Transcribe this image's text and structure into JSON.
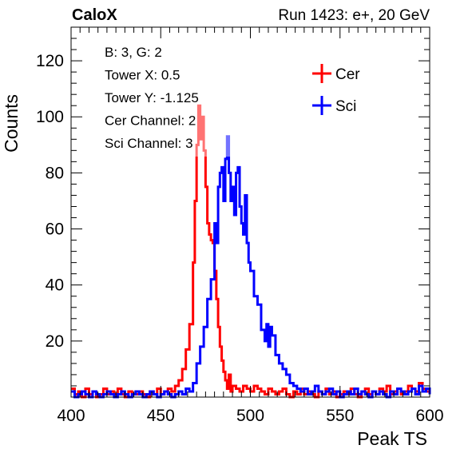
{
  "header": {
    "left": "CaloX",
    "right": "Run 1423: e+, 20 GeV"
  },
  "info_box": {
    "lines": [
      "B: 3, G: 2",
      "Tower X: 0.5",
      "Tower Y: -1.125",
      "Cer Channel: 2",
      "Sci Channel: 3"
    ]
  },
  "chart_data": {
    "type": "line",
    "xlabel": "Peak TS",
    "ylabel": "Counts",
    "xlim": [
      400,
      600
    ],
    "ylim": [
      0,
      132
    ],
    "x_ticks": [
      400,
      450,
      500,
      550,
      600
    ],
    "y_ticks": [
      20,
      40,
      60,
      80,
      100,
      120
    ],
    "legend_position": "top-right",
    "grid": false,
    "series": [
      {
        "name": "Cer",
        "color": "#ff0000",
        "points": [
          [
            400,
            3
          ],
          [
            402,
            1
          ],
          [
            404,
            2
          ],
          [
            406,
            0
          ],
          [
            408,
            3
          ],
          [
            410,
            1
          ],
          [
            412,
            2
          ],
          [
            414,
            0
          ],
          [
            416,
            1
          ],
          [
            418,
            3
          ],
          [
            420,
            1
          ],
          [
            422,
            2
          ],
          [
            424,
            1
          ],
          [
            426,
            3
          ],
          [
            428,
            1
          ],
          [
            430,
            0
          ],
          [
            432,
            2
          ],
          [
            434,
            1
          ],
          [
            436,
            1
          ],
          [
            438,
            2
          ],
          [
            440,
            1
          ],
          [
            442,
            0
          ],
          [
            444,
            2
          ],
          [
            446,
            1
          ],
          [
            448,
            3
          ],
          [
            450,
            1
          ],
          [
            452,
            2
          ],
          [
            454,
            3
          ],
          [
            456,
            2
          ],
          [
            458,
            4
          ],
          [
            460,
            6
          ],
          [
            462,
            10
          ],
          [
            464,
            17
          ],
          [
            466,
            26
          ],
          [
            468,
            48
          ],
          [
            469,
            70
          ],
          [
            470,
            90
          ],
          [
            471,
            104
          ],
          [
            472,
            92
          ],
          [
            473,
            100
          ],
          [
            474,
            88
          ],
          [
            475,
            75
          ],
          [
            476,
            62
          ],
          [
            477,
            58
          ],
          [
            478,
            56
          ],
          [
            479,
            55
          ],
          [
            480,
            45
          ],
          [
            481,
            35
          ],
          [
            482,
            25
          ],
          [
            483,
            18
          ],
          [
            484,
            13
          ],
          [
            485,
            9
          ],
          [
            486,
            6
          ],
          [
            487,
            3
          ],
          [
            488,
            8
          ],
          [
            489,
            2
          ],
          [
            490,
            4
          ],
          [
            492,
            3
          ],
          [
            494,
            2
          ],
          [
            496,
            4
          ],
          [
            498,
            3
          ],
          [
            500,
            2
          ],
          [
            502,
            4
          ],
          [
            504,
            3
          ],
          [
            506,
            2
          ],
          [
            508,
            1
          ],
          [
            510,
            3
          ],
          [
            512,
            2
          ],
          [
            514,
            1
          ],
          [
            516,
            2
          ],
          [
            518,
            3
          ],
          [
            520,
            1
          ],
          [
            522,
            0
          ],
          [
            524,
            2
          ],
          [
            526,
            1
          ],
          [
            528,
            3
          ],
          [
            530,
            1
          ],
          [
            532,
            2
          ],
          [
            534,
            1
          ],
          [
            536,
            0
          ],
          [
            538,
            2
          ],
          [
            540,
            1
          ],
          [
            542,
            3
          ],
          [
            544,
            1
          ],
          [
            546,
            2
          ],
          [
            548,
            0
          ],
          [
            550,
            1
          ],
          [
            552,
            2
          ],
          [
            554,
            1
          ],
          [
            556,
            3
          ],
          [
            558,
            1
          ],
          [
            560,
            0
          ],
          [
            562,
            2
          ],
          [
            564,
            3
          ],
          [
            566,
            1
          ],
          [
            568,
            2
          ],
          [
            570,
            1
          ],
          [
            572,
            3
          ],
          [
            574,
            2
          ],
          [
            576,
            4
          ],
          [
            578,
            1
          ],
          [
            580,
            2
          ],
          [
            582,
            3
          ],
          [
            584,
            1
          ],
          [
            586,
            2
          ],
          [
            588,
            4
          ],
          [
            590,
            3
          ],
          [
            592,
            2
          ],
          [
            594,
            5
          ],
          [
            596,
            3
          ],
          [
            598,
            2
          ],
          [
            600,
            1
          ]
        ]
      },
      {
        "name": "Sci",
        "color": "#0000ff",
        "points": [
          [
            400,
            2
          ],
          [
            402,
            0
          ],
          [
            404,
            1
          ],
          [
            406,
            2
          ],
          [
            408,
            1
          ],
          [
            410,
            0
          ],
          [
            412,
            2
          ],
          [
            414,
            1
          ],
          [
            416,
            0
          ],
          [
            418,
            1
          ],
          [
            420,
            2
          ],
          [
            422,
            1
          ],
          [
            424,
            0
          ],
          [
            426,
            1
          ],
          [
            428,
            2
          ],
          [
            430,
            1
          ],
          [
            432,
            0
          ],
          [
            434,
            1
          ],
          [
            436,
            2
          ],
          [
            438,
            1
          ],
          [
            440,
            0
          ],
          [
            442,
            1
          ],
          [
            444,
            2
          ],
          [
            446,
            1
          ],
          [
            448,
            0
          ],
          [
            450,
            1
          ],
          [
            452,
            2
          ],
          [
            454,
            1
          ],
          [
            456,
            0
          ],
          [
            458,
            1
          ],
          [
            460,
            2
          ],
          [
            462,
            1
          ],
          [
            464,
            3
          ],
          [
            466,
            2
          ],
          [
            468,
            5
          ],
          [
            470,
            12
          ],
          [
            472,
            18
          ],
          [
            474,
            25
          ],
          [
            476,
            35
          ],
          [
            478,
            42
          ],
          [
            480,
            62
          ],
          [
            481,
            55
          ],
          [
            482,
            75
          ],
          [
            483,
            80
          ],
          [
            484,
            82
          ],
          [
            485,
            70
          ],
          [
            486,
            85
          ],
          [
            487,
            93
          ],
          [
            488,
            80
          ],
          [
            489,
            70
          ],
          [
            490,
            75
          ],
          [
            491,
            65
          ],
          [
            492,
            80
          ],
          [
            493,
            82
          ],
          [
            494,
            68
          ],
          [
            495,
            62
          ],
          [
            496,
            58
          ],
          [
            497,
            72
          ],
          [
            498,
            55
          ],
          [
            499,
            48
          ],
          [
            500,
            45
          ],
          [
            502,
            36
          ],
          [
            504,
            33
          ],
          [
            506,
            24
          ],
          [
            508,
            20
          ],
          [
            509,
            26
          ],
          [
            510,
            18
          ],
          [
            511,
            25
          ],
          [
            512,
            22
          ],
          [
            514,
            15
          ],
          [
            516,
            12
          ],
          [
            518,
            10
          ],
          [
            520,
            8
          ],
          [
            522,
            5
          ],
          [
            524,
            4
          ],
          [
            526,
            3
          ],
          [
            528,
            2
          ],
          [
            530,
            3
          ],
          [
            532,
            1
          ],
          [
            534,
            2
          ],
          [
            536,
            4
          ],
          [
            538,
            2
          ],
          [
            540,
            1
          ],
          [
            542,
            2
          ],
          [
            544,
            3
          ],
          [
            546,
            1
          ],
          [
            548,
            2
          ],
          [
            550,
            0
          ],
          [
            552,
            1
          ],
          [
            554,
            2
          ],
          [
            556,
            1
          ],
          [
            558,
            3
          ],
          [
            560,
            1
          ],
          [
            562,
            2
          ],
          [
            564,
            1
          ],
          [
            566,
            0
          ],
          [
            568,
            2
          ],
          [
            570,
            1
          ],
          [
            572,
            2
          ],
          [
            574,
            1
          ],
          [
            576,
            0
          ],
          [
            578,
            2
          ],
          [
            580,
            1
          ],
          [
            582,
            3
          ],
          [
            584,
            2
          ],
          [
            586,
            1
          ],
          [
            588,
            2
          ],
          [
            590,
            3
          ],
          [
            592,
            1
          ],
          [
            594,
            4
          ],
          [
            596,
            2
          ],
          [
            598,
            3
          ],
          [
            600,
            1
          ]
        ]
      }
    ]
  }
}
